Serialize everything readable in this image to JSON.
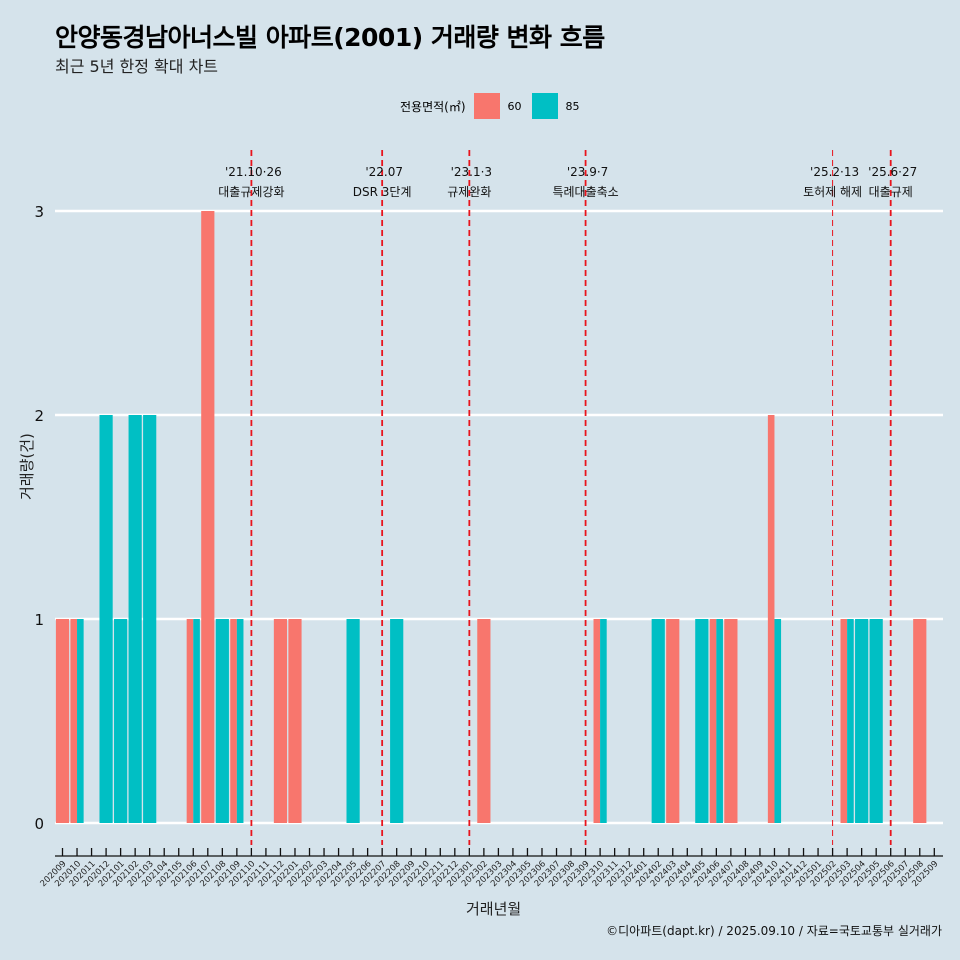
{
  "header": {
    "title": "안양동경남아너스빌 아파트(2001) 거래량 변화 흐름",
    "subtitle": "최근 5년 한정 확대 차트"
  },
  "legend": {
    "title": "전용면적(㎡)",
    "items": [
      {
        "label": "60",
        "color": "#F8766D"
      },
      {
        "label": "85",
        "color": "#00BFC4"
      }
    ]
  },
  "caption": "©디아파트(dapt.kr) / 2025.09.10 / 자료=국토교통부 실거래가",
  "chart_data": {
    "type": "bar",
    "bar_mode": "dodge",
    "title": "안양동경남아너스빌 아파트(2001) 거래량 변화 흐름",
    "subtitle": "최근 5년 한정 확대 차트",
    "xlabel": "거래년월",
    "ylabel": "거래량(건)",
    "ylim": [
      0,
      3
    ],
    "yticks": [
      0,
      1,
      2,
      3
    ],
    "grid": "horizontal",
    "legend_position": "top",
    "categories": [
      "202009",
      "202010",
      "202011",
      "202012",
      "202101",
      "202102",
      "202103",
      "202104",
      "202105",
      "202106",
      "202107",
      "202108",
      "202109",
      "202110",
      "202111",
      "202112",
      "202201",
      "202202",
      "202203",
      "202204",
      "202205",
      "202206",
      "202207",
      "202208",
      "202209",
      "202210",
      "202211",
      "202212",
      "202301",
      "202302",
      "202303",
      "202304",
      "202305",
      "202306",
      "202307",
      "202308",
      "202309",
      "202310",
      "202311",
      "202312",
      "202401",
      "202402",
      "202403",
      "202404",
      "202405",
      "202406",
      "202407",
      "202408",
      "202409",
      "202410",
      "202411",
      "202412",
      "202501",
      "202502",
      "202503",
      "202504",
      "202505",
      "202506",
      "202507",
      "202508",
      "202509"
    ],
    "series": [
      {
        "name": "60",
        "color": "#F8766D",
        "values": [
          1,
          1,
          0,
          0,
          0,
          0,
          0,
          0,
          0,
          1,
          3,
          0,
          1,
          0,
          0,
          1,
          1,
          0,
          0,
          0,
          0,
          0,
          0,
          0,
          0,
          0,
          0,
          0,
          0,
          1,
          0,
          0,
          0,
          0,
          0,
          0,
          0,
          1,
          0,
          0,
          0,
          0,
          1,
          0,
          0,
          1,
          1,
          0,
          0,
          2,
          0,
          0,
          0,
          0,
          1,
          0,
          0,
          0,
          0,
          1,
          0
        ]
      },
      {
        "name": "85",
        "color": "#00BFC4",
        "values": [
          0,
          1,
          0,
          2,
          1,
          2,
          2,
          0,
          0,
          1,
          0,
          1,
          1,
          0,
          0,
          0,
          0,
          0,
          0,
          0,
          1,
          0,
          0,
          1,
          0,
          0,
          0,
          0,
          0,
          0,
          0,
          0,
          0,
          0,
          0,
          0,
          0,
          1,
          0,
          0,
          0,
          1,
          0,
          0,
          1,
          1,
          0,
          0,
          0,
          1,
          0,
          0,
          0,
          0,
          1,
          1,
          1,
          0,
          0,
          0,
          0
        ]
      }
    ],
    "annotations": [
      {
        "month": "202110",
        "date": "'21.10·26",
        "label": "대출규제강화",
        "style": "dashed"
      },
      {
        "month": "202207",
        "date": "'22.07",
        "label": "DSR 3단계",
        "style": "dashed"
      },
      {
        "month": "202301",
        "date": "'23.1·3",
        "label": "규제완화",
        "style": "dashed"
      },
      {
        "month": "202309",
        "date": "'23.9·7",
        "label": "특례대출축소",
        "style": "dashed"
      },
      {
        "month": "202502",
        "date": "'25.2·13",
        "label": "토허제 해제",
        "style": "dashed-thin"
      },
      {
        "month": "202506",
        "date": "'25.6·27",
        "label": "대출규제",
        "style": "dashed"
      }
    ]
  }
}
